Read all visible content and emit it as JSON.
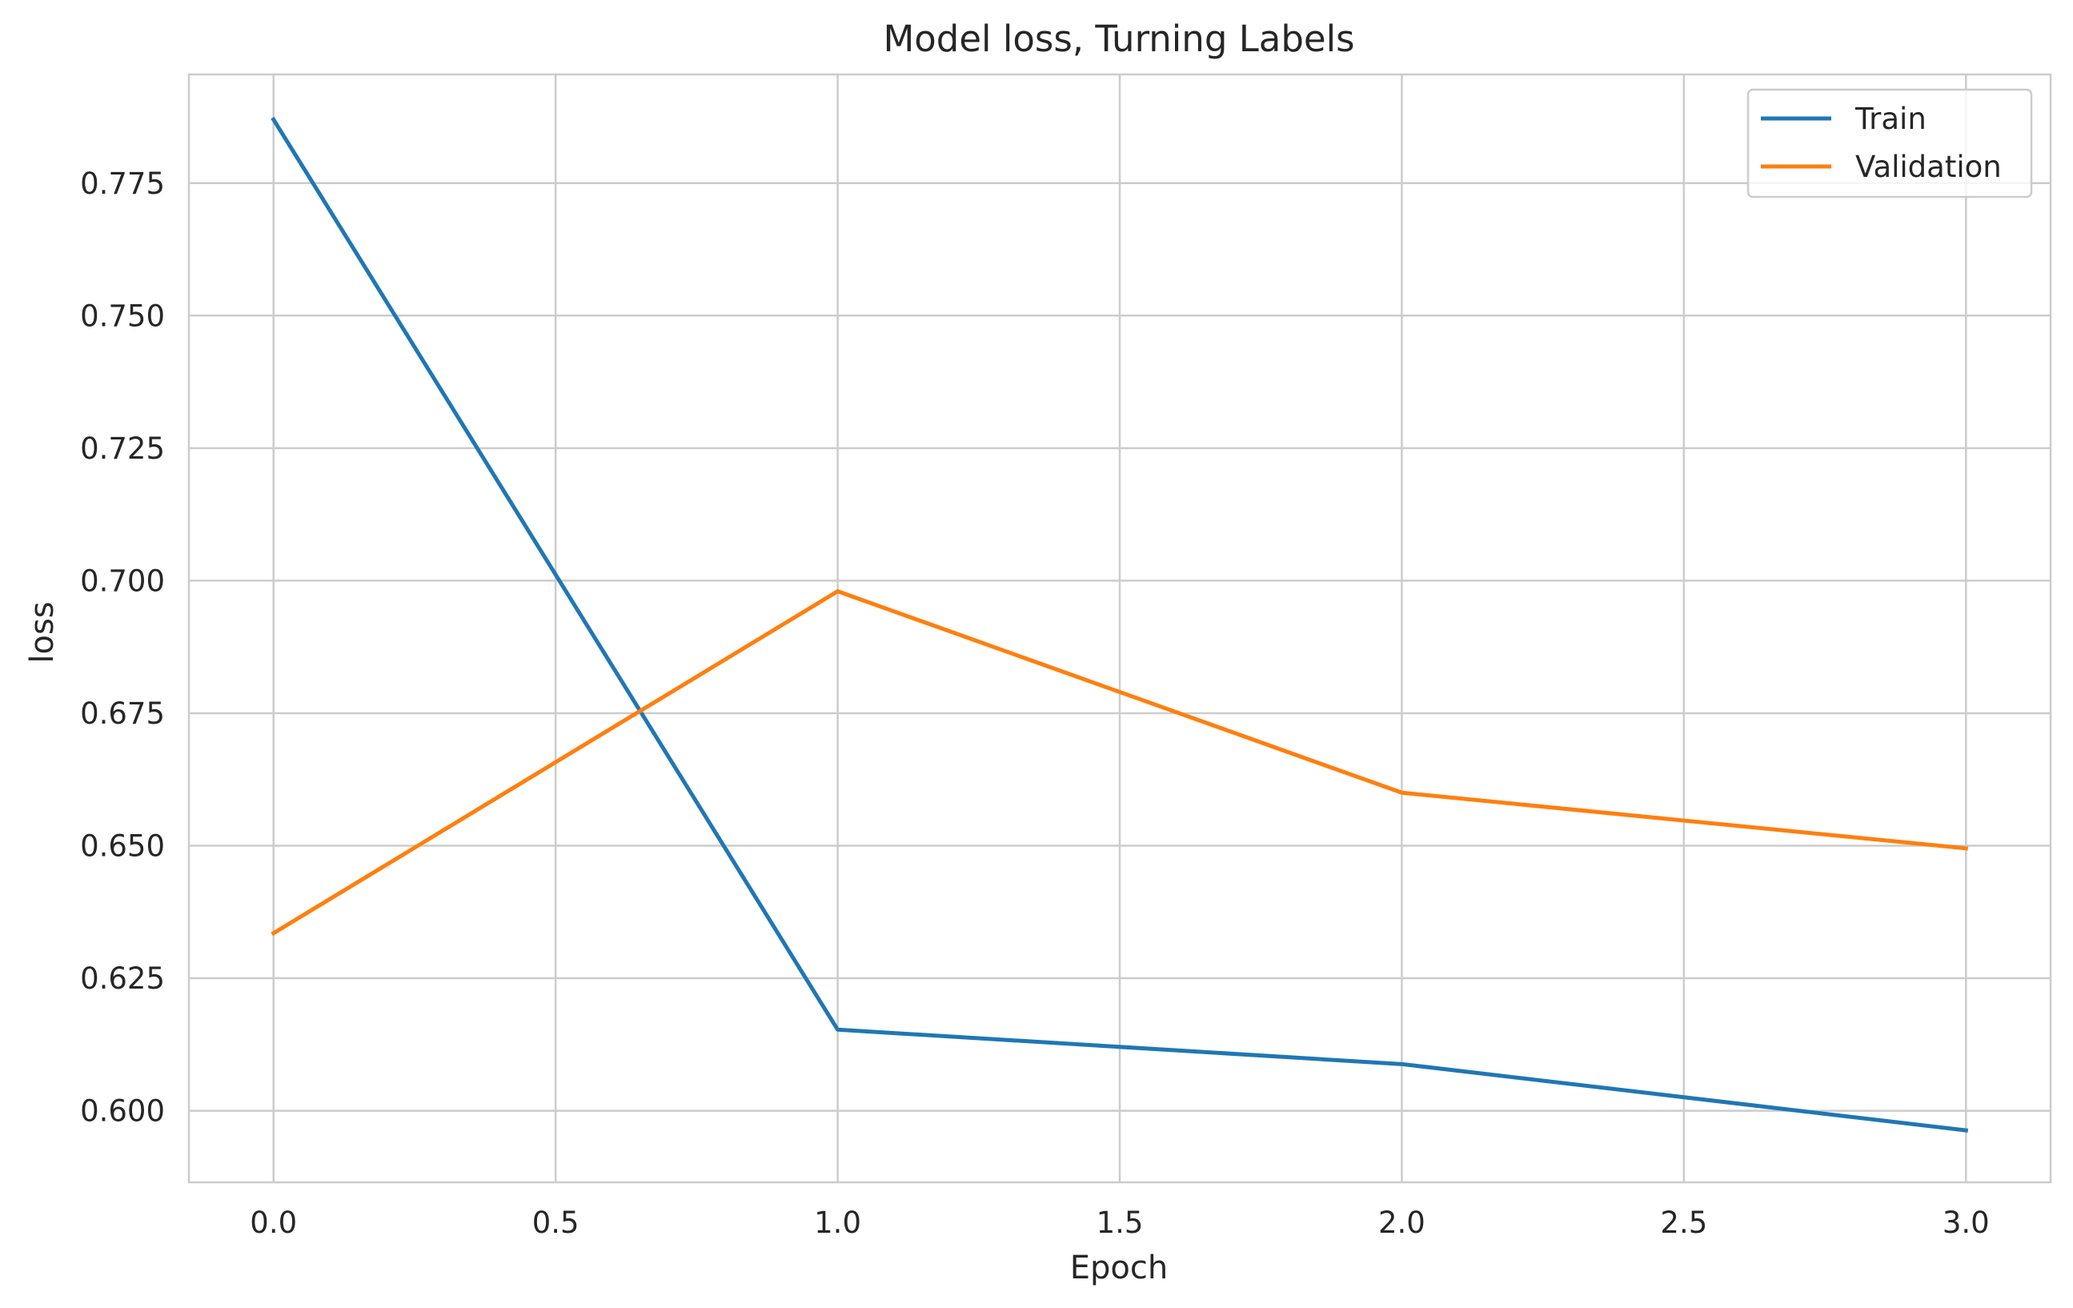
{
  "chart_data": {
    "type": "line",
    "title": "Model loss, Turning Labels",
    "xlabel": "Epoch",
    "ylabel": "loss",
    "x": [
      0,
      1,
      2,
      3
    ],
    "xlim": [
      -0.15,
      3.15
    ],
    "ylim": [
      0.5865,
      0.7955
    ],
    "xticks": [
      0.0,
      0.5,
      1.0,
      1.5,
      2.0,
      2.5,
      3.0
    ],
    "xtick_labels": [
      "0.0",
      "0.5",
      "1.0",
      "1.5",
      "2.0",
      "2.5",
      "3.0"
    ],
    "yticks": [
      0.6,
      0.625,
      0.65,
      0.675,
      0.7,
      0.725,
      0.75,
      0.775
    ],
    "ytick_labels": [
      "0.600",
      "0.625",
      "0.650",
      "0.675",
      "0.700",
      "0.725",
      "0.750",
      "0.775"
    ],
    "grid": true,
    "legend_position": "top-right",
    "series": [
      {
        "name": "Train",
        "color": "#1f77b4",
        "values": [
          0.787,
          0.6153,
          0.6088,
          0.5963
        ]
      },
      {
        "name": "Validation",
        "color": "#ff7f0e",
        "values": [
          0.6335,
          0.698,
          0.66,
          0.6495
        ]
      }
    ]
  }
}
